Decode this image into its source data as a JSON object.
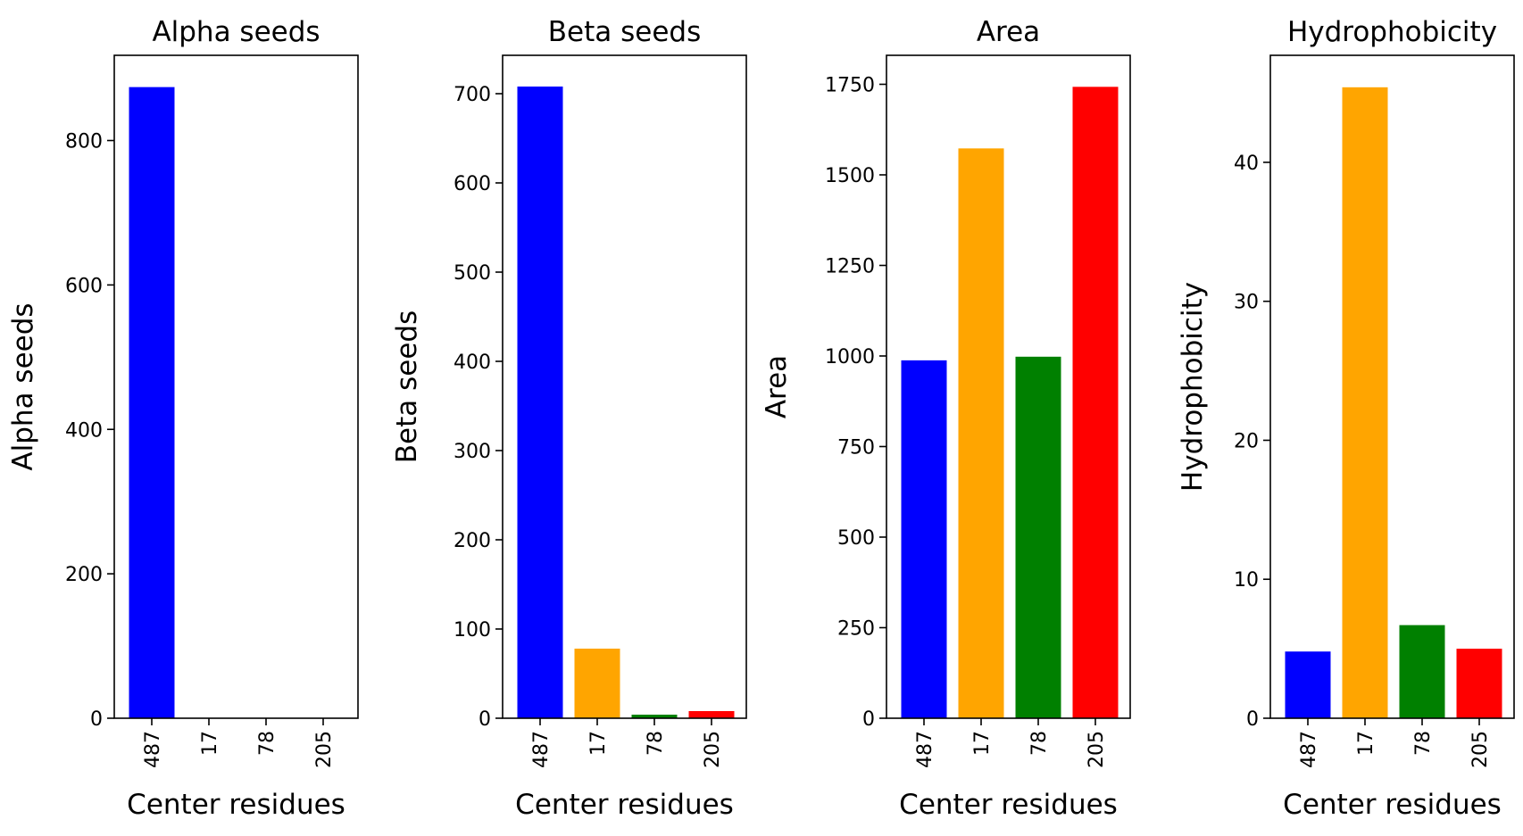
{
  "figure": {
    "background": "#ffffff"
  },
  "chart_data": [
    {
      "type": "bar",
      "title": "Alpha seeds",
      "xlabel": "Center residues",
      "ylabel": "Alpha seeds",
      "categories": [
        "487",
        "17",
        "78",
        "205"
      ],
      "values": [
        874,
        0,
        0,
        0
      ],
      "colors": [
        "#0000ff",
        "#ffa500",
        "#008000",
        "#ff0000"
      ],
      "ylim": [
        0,
        918
      ],
      "yticks": [
        0,
        200,
        400,
        600,
        800
      ],
      "grid": false
    },
    {
      "type": "bar",
      "title": "Beta seeds",
      "xlabel": "Center residues",
      "ylabel": "Beta seeds",
      "categories": [
        "487",
        "17",
        "78",
        "205"
      ],
      "values": [
        708,
        78,
        4,
        8
      ],
      "colors": [
        "#0000ff",
        "#ffa500",
        "#008000",
        "#ff0000"
      ],
      "ylim": [
        0,
        743
      ],
      "yticks": [
        0,
        100,
        200,
        300,
        400,
        500,
        600,
        700
      ],
      "grid": false
    },
    {
      "type": "bar",
      "title": "Area",
      "xlabel": "Center residues",
      "ylabel": "Area",
      "categories": [
        "487",
        "17",
        "78",
        "205"
      ],
      "values": [
        988,
        1573,
        998,
        1743
      ],
      "colors": [
        "#0000ff",
        "#ffa500",
        "#008000",
        "#ff0000"
      ],
      "ylim": [
        0,
        1830
      ],
      "yticks": [
        0,
        250,
        500,
        750,
        1000,
        1250,
        1500,
        1750
      ],
      "grid": false
    },
    {
      "type": "bar",
      "title": "Hydrophobicity",
      "xlabel": "Center residues",
      "ylabel": "Hydrophobicity",
      "categories": [
        "487",
        "17",
        "78",
        "205"
      ],
      "values": [
        4.8,
        45.4,
        6.7,
        5.0
      ],
      "colors": [
        "#0000ff",
        "#ffa500",
        "#008000",
        "#ff0000"
      ],
      "ylim": [
        0,
        47.7
      ],
      "yticks": [
        0,
        10,
        20,
        30,
        40
      ],
      "grid": false
    }
  ]
}
